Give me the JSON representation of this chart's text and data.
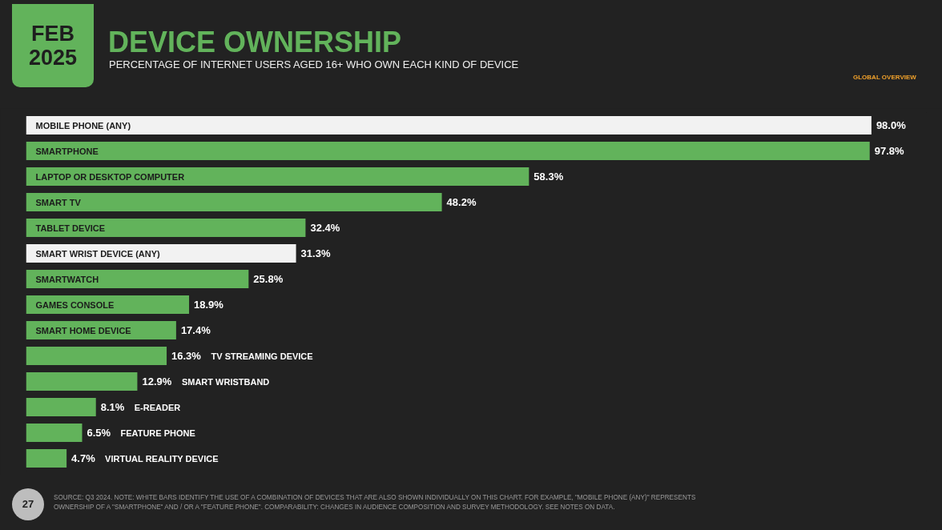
{
  "chart_data": {
    "type": "bar",
    "orientation": "horizontal",
    "title": "DEVICE OWNERSHIP",
    "subtitle": "PERCENTAGE OF INTERNET USERS AGED 16+ WHO OWN EACH KIND OF DEVICE",
    "categories": [
      "MOBILE PHONE (ANY)",
      "SMARTPHONE",
      "LAPTOP OR DESKTOP COMPUTER",
      "SMART TV",
      "TABLET DEVICE",
      "SMART WRIST DEVICE (ANY)",
      "SMARTWATCH",
      "GAMES CONSOLE",
      "SMART HOME DEVICE",
      "TV STREAMING DEVICE",
      "SMART WRISTBAND",
      "E-READER",
      "FEATURE PHONE",
      "VIRTUAL REALITY DEVICE"
    ],
    "values": [
      98.0,
      97.8,
      58.3,
      48.2,
      32.4,
      31.3,
      25.8,
      18.9,
      17.4,
      16.3,
      12.9,
      8.1,
      6.5,
      4.7
    ],
    "value_labels": [
      "98.0%",
      "97.8%",
      "58.3%",
      "48.2%",
      "32.4%",
      "31.3%",
      "25.8%",
      "18.9%",
      "17.4%",
      "16.3%",
      "12.9%",
      "8.1%",
      "6.5%",
      "4.7%"
    ],
    "colors": [
      "#f2f2f2",
      "#62b35b",
      "#62b35b",
      "#62b35b",
      "#62b35b",
      "#f2f2f2",
      "#62b35b",
      "#62b35b",
      "#62b35b",
      "#62b35b",
      "#62b35b",
      "#62b35b",
      "#62b35b",
      "#62b35b"
    ],
    "annotations": [
      "FEB 2025",
      "GLOBAL OVERVIEW",
      "27",
      "SOURCE: Q3 2024. NOTE: WHITE BARS IDENTIFY THE USE OF A COMBINATION OF DEVICES THAT ARE ALSO SHOWN INDIVIDUALLY ON THIS CHART. FOR EXAMPLE, \"MOBILE PHONE (ANY)\" REPRESENTS OWNERSHIP OF A \"SMARTPHONE\" AND / OR A \"FEATURE PHONE\". COMPARABILITY: CHANGES IN AUDIENCE COMPOSITION AND SURVEY METHODOLOGY. SEE NOTES ON DATA."
    ]
  }
}
